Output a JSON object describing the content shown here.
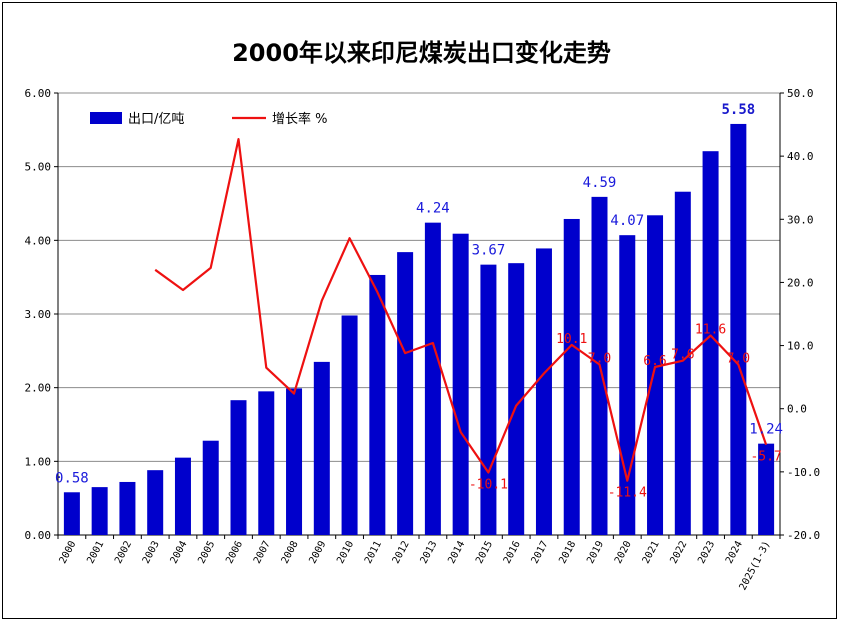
{
  "chart_data": {
    "type": "bar+line",
    "title": "2000年以来印尼煤炭出口变化走势",
    "categories": [
      "2000",
      "2001",
      "2002",
      "2003",
      "2004",
      "2005",
      "2006",
      "2007",
      "2008",
      "2009",
      "2010",
      "2011",
      "2012",
      "2013",
      "2014",
      "2015",
      "2016",
      "2017",
      "2018",
      "2019",
      "2020",
      "2021",
      "2022",
      "2023",
      "2024",
      "2025(1-3)"
    ],
    "series": [
      {
        "name": "出口/亿吨",
        "type": "bar",
        "axis": "left",
        "color": "#0000cc",
        "values": [
          0.58,
          0.65,
          0.72,
          0.88,
          1.05,
          1.28,
          1.83,
          1.95,
          1.99,
          2.35,
          2.98,
          3.53,
          3.84,
          4.24,
          4.09,
          3.67,
          3.69,
          3.89,
          4.29,
          4.59,
          4.07,
          4.34,
          4.66,
          5.21,
          5.58,
          1.24
        ],
        "labels": [
          {
            "index": 0,
            "text": "0.58"
          },
          {
            "index": 13,
            "text": "4.24"
          },
          {
            "index": 15,
            "text": "3.67"
          },
          {
            "index": 19,
            "text": "4.59"
          },
          {
            "index": 20,
            "text": "4.07"
          },
          {
            "index": 24,
            "text": "5.58",
            "bold": true
          },
          {
            "index": 25,
            "text": "1.24"
          }
        ]
      },
      {
        "name": "增长率 %",
        "type": "line",
        "axis": "right",
        "color": "#ee1111",
        "values": [
          null,
          null,
          null,
          22.0,
          18.8,
          22.3,
          42.7,
          6.5,
          2.4,
          17.1,
          27.0,
          18.5,
          8.8,
          10.4,
          -3.7,
          -10.1,
          0.5,
          5.6,
          10.1,
          7.0,
          -11.4,
          6.6,
          7.6,
          11.6,
          7.0,
          -5.7
        ],
        "labels": [
          {
            "index": 15,
            "text": "-10.1"
          },
          {
            "index": 18,
            "text": "10.1"
          },
          {
            "index": 19,
            "text": "7.0"
          },
          {
            "index": 20,
            "text": "-11.4"
          },
          {
            "index": 21,
            "text": "6.6"
          },
          {
            "index": 22,
            "text": "7.6"
          },
          {
            "index": 23,
            "text": "11.6"
          },
          {
            "index": 24,
            "text": "7.0"
          },
          {
            "index": 25,
            "text": "-5.7"
          }
        ]
      }
    ],
    "y_left": {
      "min": 0,
      "max": 6,
      "step": 1,
      "ticks": [
        "0.00",
        "1.00",
        "2.00",
        "3.00",
        "4.00",
        "5.00",
        "6.00"
      ]
    },
    "y_right": {
      "min": -20,
      "max": 50,
      "step": 10,
      "ticks": [
        "-20.0",
        "-10.0",
        "0.0",
        "10.0",
        "20.0",
        "30.0",
        "40.0",
        "50.0"
      ]
    },
    "grid": true,
    "legend_position": "top-left"
  }
}
